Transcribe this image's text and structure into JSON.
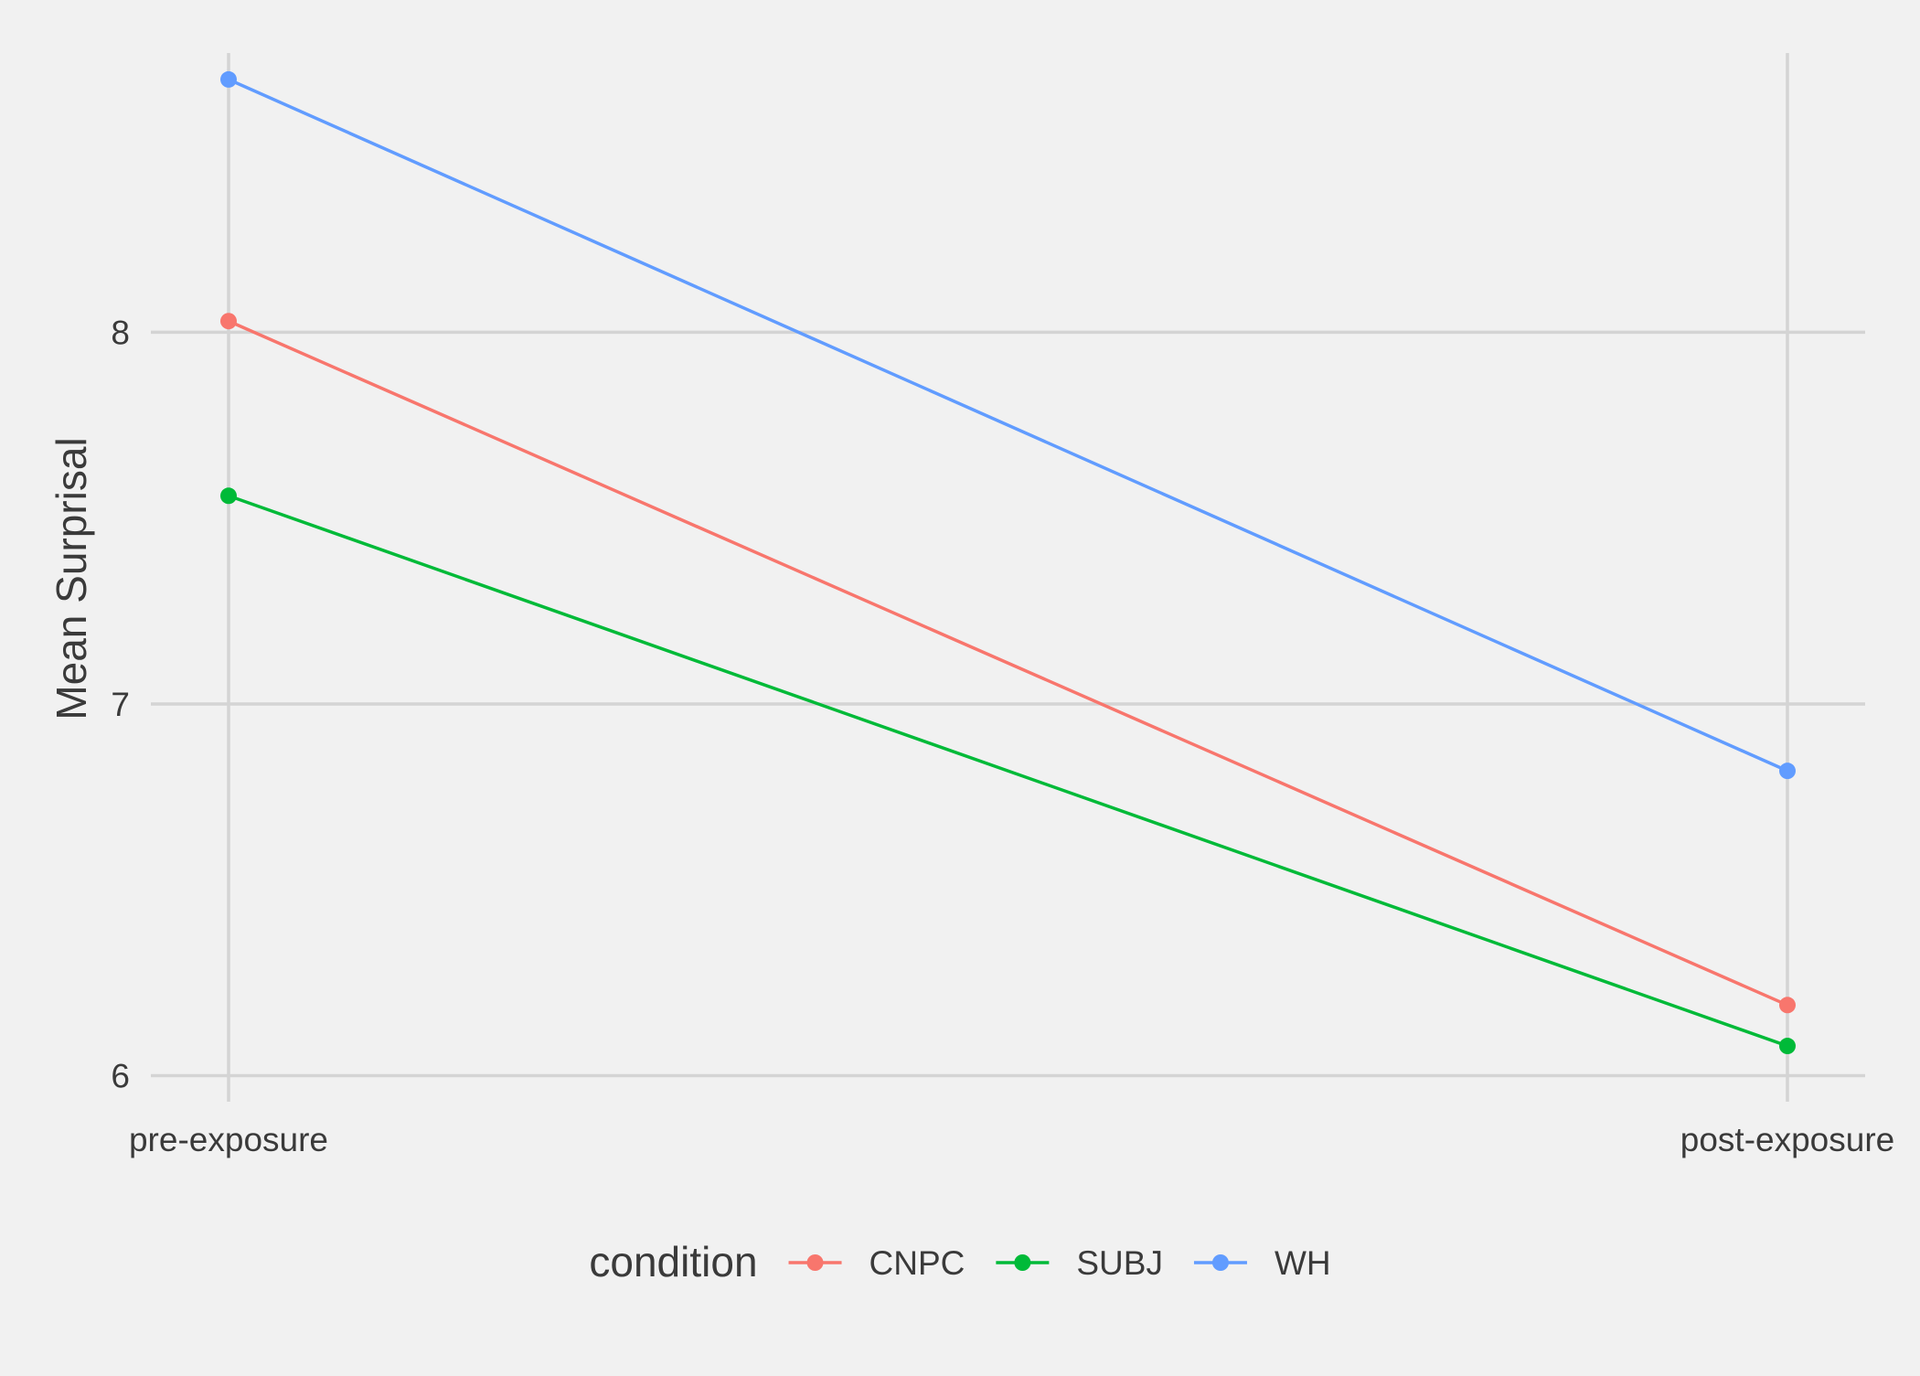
{
  "chart_data": {
    "type": "line",
    "title": "",
    "xlabel": "",
    "ylabel": "Mean Surprisal",
    "categories": [
      "pre-exposure",
      "post-exposure"
    ],
    "ylim": [
      5.93,
      8.82
    ],
    "yticks": [
      6,
      7,
      8
    ],
    "grid": true,
    "legend": {
      "title": "condition",
      "placement": "bottom"
    },
    "series": [
      {
        "name": "CNPC",
        "color": "#F8766D",
        "values": [
          8.03,
          6.19
        ]
      },
      {
        "name": "SUBJ",
        "color": "#00BA38",
        "values": [
          7.56,
          6.08
        ]
      },
      {
        "name": "WH",
        "color": "#619CFF",
        "values": [
          8.68,
          6.82
        ]
      }
    ],
    "colors": {
      "background": "#f1f1f1",
      "grid": "#d4d4d4",
      "text": "#3a3a3a"
    }
  }
}
